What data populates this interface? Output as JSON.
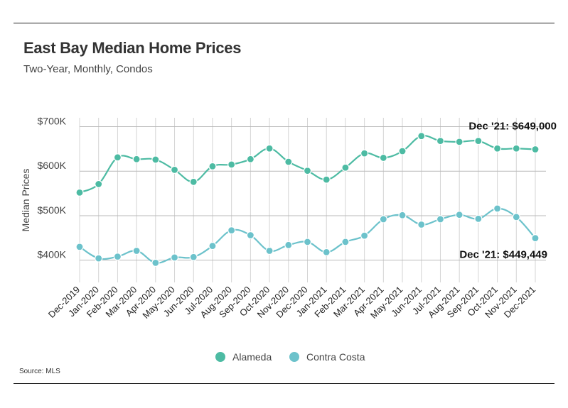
{
  "header": {
    "title": "East Bay Median Home Prices",
    "subtitle": "Two-Year, Monthly, Condos"
  },
  "footer": {
    "source": "Source:  MLS"
  },
  "chart_data": {
    "type": "line",
    "title": "East Bay Median Home Prices",
    "subtitle": "Two-Year, Monthly, Condos",
    "xlabel": "",
    "ylabel": "Median Prices",
    "ylim": [
      350000,
      720000
    ],
    "yticks": [
      400000,
      500000,
      600000,
      700000
    ],
    "ytick_labels": [
      "$400K",
      "$500K",
      "$600K",
      "$700K"
    ],
    "grid": true,
    "legend_position": "bottom",
    "categories": [
      "Dec-2019",
      "Jan-2020",
      "Feb-2020",
      "Mar-2020",
      "Apr-2020",
      "May-2020",
      "Jun-2020",
      "Jul-2020",
      "Aug-2020",
      "Sep-2020",
      "Oct-2020",
      "Nov-2020",
      "Dec-2020",
      "Jan-2021",
      "Feb-2021",
      "Mar-2021",
      "Apr-2021",
      "May-2021",
      "Jun-2021",
      "Jul-2021",
      "Aug-2021",
      "Sep-2021",
      "Oct-2021",
      "Nov-2021",
      "Dec-2021"
    ],
    "series": [
      {
        "name": "Alameda",
        "color": "#4dbba3",
        "values": [
          552000,
          571000,
          631000,
          627000,
          626000,
          603000,
          576000,
          611000,
          615000,
          627000,
          651000,
          621000,
          601000,
          581000,
          608000,
          640000,
          630000,
          645000,
          679000,
          668000,
          666000,
          668000,
          651000,
          651000,
          649000
        ]
      },
      {
        "name": "Contra Costa",
        "color": "#6cc2cb",
        "values": [
          430000,
          404000,
          408000,
          421000,
          394000,
          406000,
          407000,
          432000,
          467000,
          456000,
          421000,
          434000,
          441000,
          418000,
          441000,
          455000,
          492000,
          501000,
          480000,
          492000,
          502000,
          493000,
          516000,
          497000,
          449449
        ]
      }
    ],
    "annotations": [
      {
        "text": "Dec '21: $649,000",
        "series": 0,
        "index": 24
      },
      {
        "text": "Dec '21: $449,449",
        "series": 1,
        "index": 24
      }
    ]
  }
}
